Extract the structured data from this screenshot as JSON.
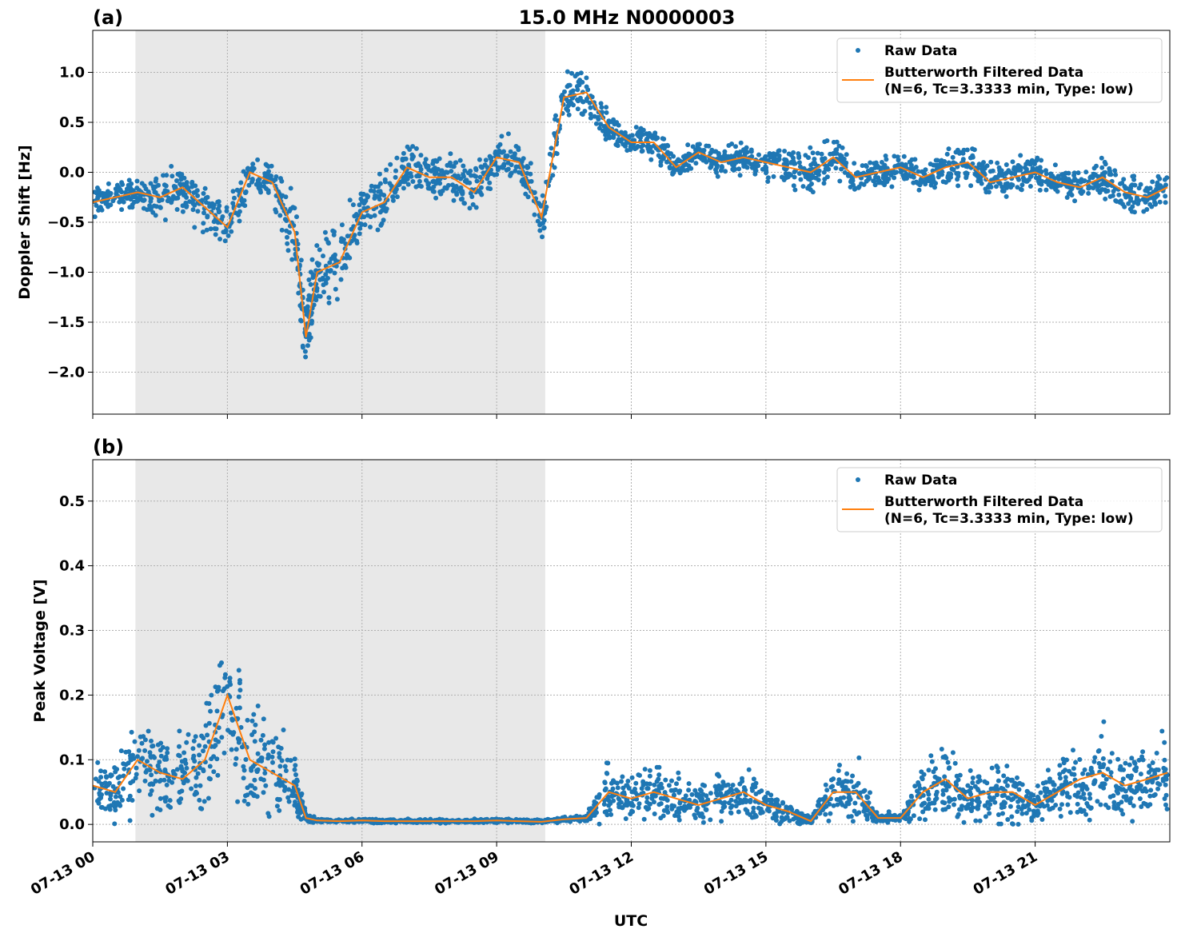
{
  "chart_data": [
    {
      "panel_label": "(a)",
      "title": "15.0 MHz N0000003",
      "type": "scatter+line",
      "xlabel": "",
      "ylabel": "Doppler Shift [Hz]",
      "ylim": [
        -2.42,
        1.42
      ],
      "yticks": [
        -2.0,
        -1.5,
        -1.0,
        -0.5,
        0.0,
        0.5,
        1.0
      ],
      "ytick_labels": [
        "−2.0",
        "−1.5",
        "−1.0",
        "−0.5",
        "0.0",
        "0.5",
        "1.0"
      ],
      "grid": true,
      "legend_position": "top-right",
      "legend": [
        "Raw Data",
        "Butterworth Filtered Data",
        "(N=6, Tc=3.3333 min, Type: low)"
      ],
      "shaded_interval": [
        "07-13 00:57",
        "07-13 10:05"
      ],
      "series": [
        {
          "name": "Raw Data",
          "kind": "scatter",
          "color": "#1f77b4",
          "center": [
            -0.3,
            -0.25,
            -0.2,
            -0.25,
            -0.15,
            -0.35,
            -0.55,
            0.0,
            -0.1,
            -0.6,
            -1.65,
            -1.0,
            -0.9,
            -0.4,
            -0.3,
            0.05,
            -0.05,
            -0.05,
            -0.2,
            0.15,
            0.1,
            -0.45,
            0.75,
            0.8,
            0.45,
            0.3,
            0.3,
            0.05,
            0.2,
            0.1,
            0.15,
            0.1,
            0.05,
            0.0,
            0.15,
            -0.05,
            0.0,
            0.05,
            -0.05,
            0.05,
            0.1,
            -0.1,
            -0.05,
            0.0,
            -0.1,
            -0.15,
            -0.05,
            -0.2,
            -0.25,
            -0.15
          ],
          "spread": [
            0.2,
            0.2,
            0.2,
            0.3,
            0.35,
            0.35,
            0.3,
            0.25,
            0.25,
            0.5,
            0.55,
            0.5,
            0.5,
            0.4,
            0.4,
            0.35,
            0.35,
            0.35,
            0.35,
            0.3,
            0.3,
            0.35,
            0.35,
            0.35,
            0.25,
            0.2,
            0.25,
            0.2,
            0.2,
            0.2,
            0.2,
            0.25,
            0.3,
            0.3,
            0.25,
            0.25,
            0.2,
            0.2,
            0.2,
            0.25,
            0.3,
            0.25,
            0.25,
            0.2,
            0.2,
            0.25,
            0.25,
            0.25,
            0.25,
            0.25
          ]
        },
        {
          "name": "Butterworth Filtered Data",
          "kind": "line",
          "color": "#ff7f0e",
          "values": [
            -0.3,
            -0.25,
            -0.2,
            -0.25,
            -0.15,
            -0.35,
            -0.55,
            0.0,
            -0.1,
            -0.6,
            -1.65,
            -1.0,
            -0.9,
            -0.4,
            -0.3,
            0.05,
            -0.05,
            -0.05,
            -0.2,
            0.15,
            0.1,
            -0.45,
            0.75,
            0.8,
            0.45,
            0.3,
            0.3,
            0.05,
            0.2,
            0.1,
            0.15,
            0.1,
            0.05,
            0.0,
            0.15,
            -0.05,
            0.0,
            0.05,
            -0.05,
            0.05,
            0.1,
            -0.1,
            -0.05,
            0.0,
            -0.1,
            -0.15,
            -0.05,
            -0.2,
            -0.25,
            -0.15
          ]
        }
      ]
    },
    {
      "panel_label": "(b)",
      "type": "scatter+line",
      "xlabel": "UTC",
      "ylabel": "Peak Voltage [V]",
      "ylim": [
        -0.027,
        0.564
      ],
      "yticks": [
        0.0,
        0.1,
        0.2,
        0.3,
        0.4,
        0.5
      ],
      "ytick_labels": [
        "0.0",
        "0.1",
        "0.2",
        "0.3",
        "0.4",
        "0.5"
      ],
      "grid": true,
      "legend_position": "top-right",
      "legend": [
        "Raw Data",
        "Butterworth Filtered Data",
        "(N=6, Tc=3.3333 min, Type: low)"
      ],
      "shaded_interval": [
        "07-13 00:57",
        "07-13 10:05"
      ],
      "series": [
        {
          "name": "Raw Data",
          "kind": "scatter",
          "color": "#1f77b4",
          "center": [
            0.06,
            0.05,
            0.1,
            0.08,
            0.07,
            0.1,
            0.2,
            0.1,
            0.08,
            0.06,
            0.01,
            0.006,
            0.005,
            0.006,
            0.005,
            0.005,
            0.005,
            0.005,
            0.005,
            0.006,
            0.005,
            0.004,
            0.008,
            0.01,
            0.05,
            0.04,
            0.05,
            0.04,
            0.03,
            0.04,
            0.05,
            0.03,
            0.02,
            0.005,
            0.05,
            0.05,
            0.01,
            0.01,
            0.05,
            0.07,
            0.04,
            0.05,
            0.05,
            0.03,
            0.05,
            0.07,
            0.08,
            0.06,
            0.07,
            0.08
          ],
          "spread": [
            0.07,
            0.07,
            0.1,
            0.09,
            0.09,
            0.12,
            0.17,
            0.12,
            0.1,
            0.08,
            0.01,
            0.004,
            0.004,
            0.004,
            0.004,
            0.004,
            0.004,
            0.004,
            0.004,
            0.004,
            0.004,
            0.004,
            0.005,
            0.008,
            0.06,
            0.05,
            0.06,
            0.05,
            0.04,
            0.05,
            0.06,
            0.04,
            0.03,
            0.01,
            0.06,
            0.07,
            0.01,
            0.01,
            0.06,
            0.08,
            0.06,
            0.07,
            0.07,
            0.04,
            0.06,
            0.08,
            0.09,
            0.07,
            0.08,
            0.09
          ]
        },
        {
          "name": "Butterworth Filtered Data",
          "kind": "line",
          "color": "#ff7f0e",
          "values": [
            0.06,
            0.05,
            0.1,
            0.08,
            0.07,
            0.1,
            0.2,
            0.1,
            0.08,
            0.06,
            0.01,
            0.006,
            0.005,
            0.006,
            0.005,
            0.005,
            0.005,
            0.005,
            0.005,
            0.006,
            0.005,
            0.004,
            0.008,
            0.01,
            0.05,
            0.04,
            0.05,
            0.04,
            0.03,
            0.04,
            0.05,
            0.03,
            0.02,
            0.005,
            0.05,
            0.05,
            0.01,
            0.01,
            0.05,
            0.07,
            0.04,
            0.05,
            0.05,
            0.03,
            0.05,
            0.07,
            0.08,
            0.06,
            0.07,
            0.08
          ]
        }
      ]
    }
  ],
  "x": [
    "07-13 00:00",
    "07-13 00:30",
    "07-13 01:00",
    "07-13 01:30",
    "07-13 02:00",
    "07-13 02:30",
    "07-13 03:00",
    "07-13 03:30",
    "07-13 04:00",
    "07-13 04:30",
    "07-13 04:45",
    "07-13 05:00",
    "07-13 05:30",
    "07-13 06:00",
    "07-13 06:30",
    "07-13 07:00",
    "07-13 07:30",
    "07-13 08:00",
    "07-13 08:30",
    "07-13 09:00",
    "07-13 09:30",
    "07-13 10:00",
    "07-13 10:30",
    "07-13 11:00",
    "07-13 11:30",
    "07-13 12:00",
    "07-13 12:30",
    "07-13 13:00",
    "07-13 13:30",
    "07-13 14:00",
    "07-13 14:30",
    "07-13 15:00",
    "07-13 15:30",
    "07-13 16:00",
    "07-13 16:30",
    "07-13 17:00",
    "07-13 17:30",
    "07-13 18:00",
    "07-13 18:30",
    "07-13 19:00",
    "07-13 19:30",
    "07-13 20:00",
    "07-13 20:30",
    "07-13 21:00",
    "07-13 21:30",
    "07-13 22:00",
    "07-13 22:30",
    "07-13 23:00",
    "07-13 23:30",
    "07-13 23:57"
  ],
  "xlim": [
    "07-13 00:00",
    "07-14 00:00"
  ],
  "xtick_labels": [
    "07-13 00",
    "07-13 03",
    "07-13 06",
    "07-13 09",
    "07-13 12",
    "07-13 15",
    "07-13 18",
    "07-13 21"
  ],
  "colors": {
    "raw": "#1f77b4",
    "filtered": "#ff7f0e",
    "shade": "#e8e8e8"
  }
}
